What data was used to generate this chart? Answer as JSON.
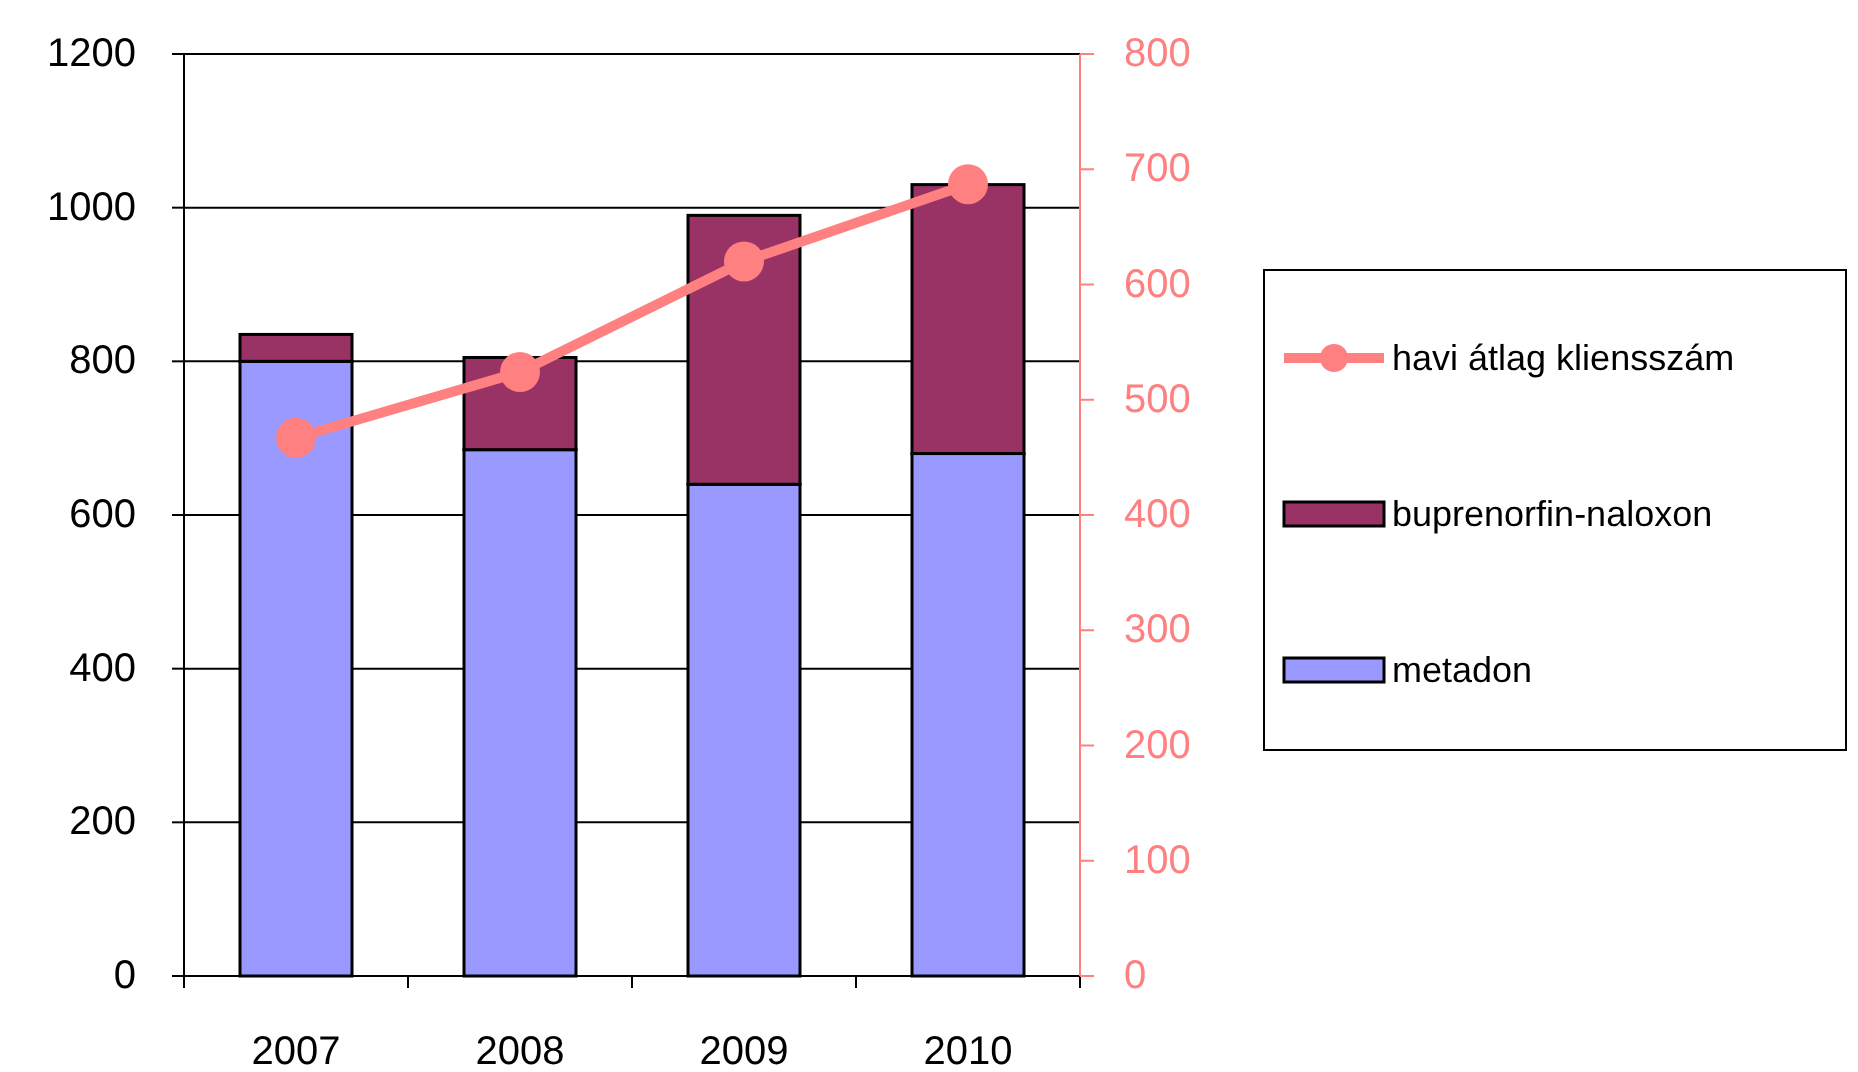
{
  "chart_data": {
    "type": "bar",
    "categories": [
      "2007",
      "2008",
      "2009",
      "2010"
    ],
    "stacked": true,
    "series": [
      {
        "name": "metadon",
        "color": "#9999ff",
        "values": [
          800,
          685,
          640,
          680
        ]
      },
      {
        "name": "buprenorfin-naloxon",
        "color": "#993366",
        "values": [
          35,
          120,
          350,
          350
        ]
      },
      {
        "name": "havi átlag kliensszám",
        "color": "#ff8080",
        "type": "line",
        "axis": "y2",
        "marker": "circle",
        "values": [
          467,
          524,
          620,
          687
        ]
      }
    ],
    "ylim": [
      0,
      1200
    ],
    "yticks": [
      0,
      200,
      400,
      600,
      800,
      1000,
      1200
    ],
    "y2lim": [
      0,
      800
    ],
    "y2ticks": [
      0,
      100,
      200,
      300,
      400,
      500,
      600,
      700,
      800
    ],
    "grid": "y",
    "legend": "right"
  }
}
